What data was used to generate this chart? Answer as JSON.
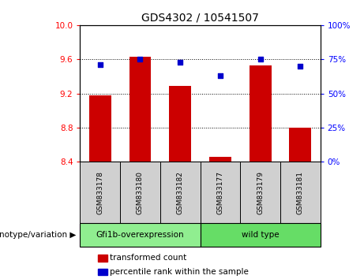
{
  "title": "GDS4302 / 10541507",
  "categories": [
    "GSM833178",
    "GSM833180",
    "GSM833182",
    "GSM833177",
    "GSM833179",
    "GSM833181"
  ],
  "bar_values": [
    9.18,
    9.63,
    9.29,
    8.46,
    9.53,
    8.8
  ],
  "dot_values": [
    71,
    75,
    73,
    63,
    75,
    70
  ],
  "ylim_left": [
    8.4,
    10.0
  ],
  "ylim_right": [
    0,
    100
  ],
  "yticks_left": [
    8.4,
    8.8,
    9.2,
    9.6,
    10.0
  ],
  "yticks_right": [
    0,
    25,
    50,
    75,
    100
  ],
  "bar_color": "#cc0000",
  "dot_color": "#0000cc",
  "group1_label": "Gfi1b-overexpression",
  "group2_label": "wild type",
  "group1_indices": [
    0,
    1,
    2
  ],
  "group2_indices": [
    3,
    4,
    5
  ],
  "group1_bg": "#90ee90",
  "group2_bg": "#66dd66",
  "sample_bg": "#d0d0d0",
  "label_bar": "transformed count",
  "label_dot": "percentile rank within the sample",
  "genotype_label": "genotype/variation",
  "plot_bg": "#ffffff",
  "fig_bg": "#ffffff"
}
